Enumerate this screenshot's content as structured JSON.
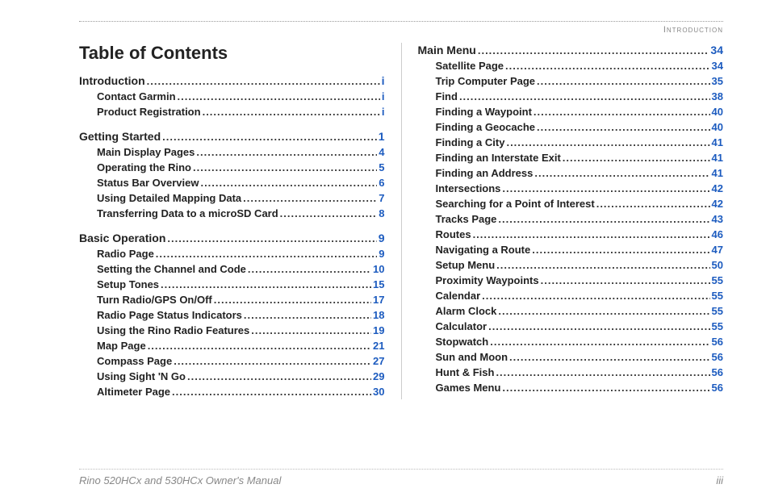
{
  "header_label": "Introduction",
  "title": "Table of Contents",
  "footer_left": "Rino 520HCx and 530HCx Owner's Manual",
  "footer_right": "iii",
  "link_color": "#1c5bbf",
  "columns": {
    "left": [
      {
        "level": 0,
        "label": "Introduction",
        "page": "i"
      },
      {
        "level": 1,
        "label": "Contact Garmin",
        "page": "i"
      },
      {
        "level": 1,
        "label": "Product Registration",
        "page": "i"
      },
      {
        "level": 0,
        "label": "Getting Started",
        "page": "1"
      },
      {
        "level": 1,
        "label": "Main Display Pages",
        "page": "4"
      },
      {
        "level": 1,
        "label": "Operating the Rino",
        "page": "5"
      },
      {
        "level": 1,
        "label": "Status Bar Overview",
        "page": "6"
      },
      {
        "level": 1,
        "label": "Using Detailed Mapping Data",
        "page": "7"
      },
      {
        "level": 1,
        "label": "Transferring Data to a microSD Card",
        "page": "8"
      },
      {
        "level": 0,
        "label": "Basic Operation",
        "page": "9"
      },
      {
        "level": 1,
        "label": "Radio Page",
        "page": "9"
      },
      {
        "level": 1,
        "label": "Setting the Channel and Code",
        "page": "10"
      },
      {
        "level": 1,
        "label": "Setup Tones",
        "page": "15"
      },
      {
        "level": 1,
        "label": "Turn Radio/GPS On/Off",
        "page": "17"
      },
      {
        "level": 1,
        "label": "Radio Page Status Indicators",
        "page": "18"
      },
      {
        "level": 1,
        "label": "Using the Rino Radio Features",
        "page": "19"
      },
      {
        "level": 1,
        "label": "Map Page",
        "page": "21"
      },
      {
        "level": 1,
        "label": "Compass Page",
        "page": "27"
      },
      {
        "level": 1,
        "label": "Using Sight 'N Go",
        "page": "29"
      },
      {
        "level": 1,
        "label": "Altimeter Page",
        "page": "30"
      }
    ],
    "right": [
      {
        "level": 0,
        "label": "Main Menu",
        "page": "34"
      },
      {
        "level": 1,
        "label": "Satellite Page",
        "page": "34"
      },
      {
        "level": 1,
        "label": "Trip Computer Page",
        "page": "35"
      },
      {
        "level": 1,
        "label": "Find",
        "page": "38"
      },
      {
        "level": 1,
        "label": "Finding a Waypoint",
        "page": "40"
      },
      {
        "level": 1,
        "label": "Finding a Geocache",
        "page": "40"
      },
      {
        "level": 1,
        "label": "Finding a City",
        "page": "41"
      },
      {
        "level": 1,
        "label": "Finding an Interstate Exit",
        "page": "41"
      },
      {
        "level": 1,
        "label": "Finding an Address",
        "page": "41"
      },
      {
        "level": 1,
        "label": "Intersections",
        "page": "42"
      },
      {
        "level": 1,
        "label": "Searching for a Point of Interest",
        "page": "42"
      },
      {
        "level": 1,
        "label": "Tracks Page",
        "page": "43"
      },
      {
        "level": 1,
        "label": "Routes",
        "page": "46"
      },
      {
        "level": 1,
        "label": "Navigating a Route",
        "page": "47"
      },
      {
        "level": 1,
        "label": "Setup Menu",
        "page": "50"
      },
      {
        "level": 1,
        "label": "Proximity Waypoints",
        "page": "55"
      },
      {
        "level": 1,
        "label": "Calendar",
        "page": "55"
      },
      {
        "level": 1,
        "label": "Alarm Clock",
        "page": "55"
      },
      {
        "level": 1,
        "label": "Calculator",
        "page": "55"
      },
      {
        "level": 1,
        "label": "Stopwatch",
        "page": "56"
      },
      {
        "level": 1,
        "label": "Sun and Moon",
        "page": "56"
      },
      {
        "level": 1,
        "label": "Hunt & Fish",
        "page": "56"
      },
      {
        "level": 1,
        "label": "Games Menu",
        "page": "56"
      }
    ]
  }
}
